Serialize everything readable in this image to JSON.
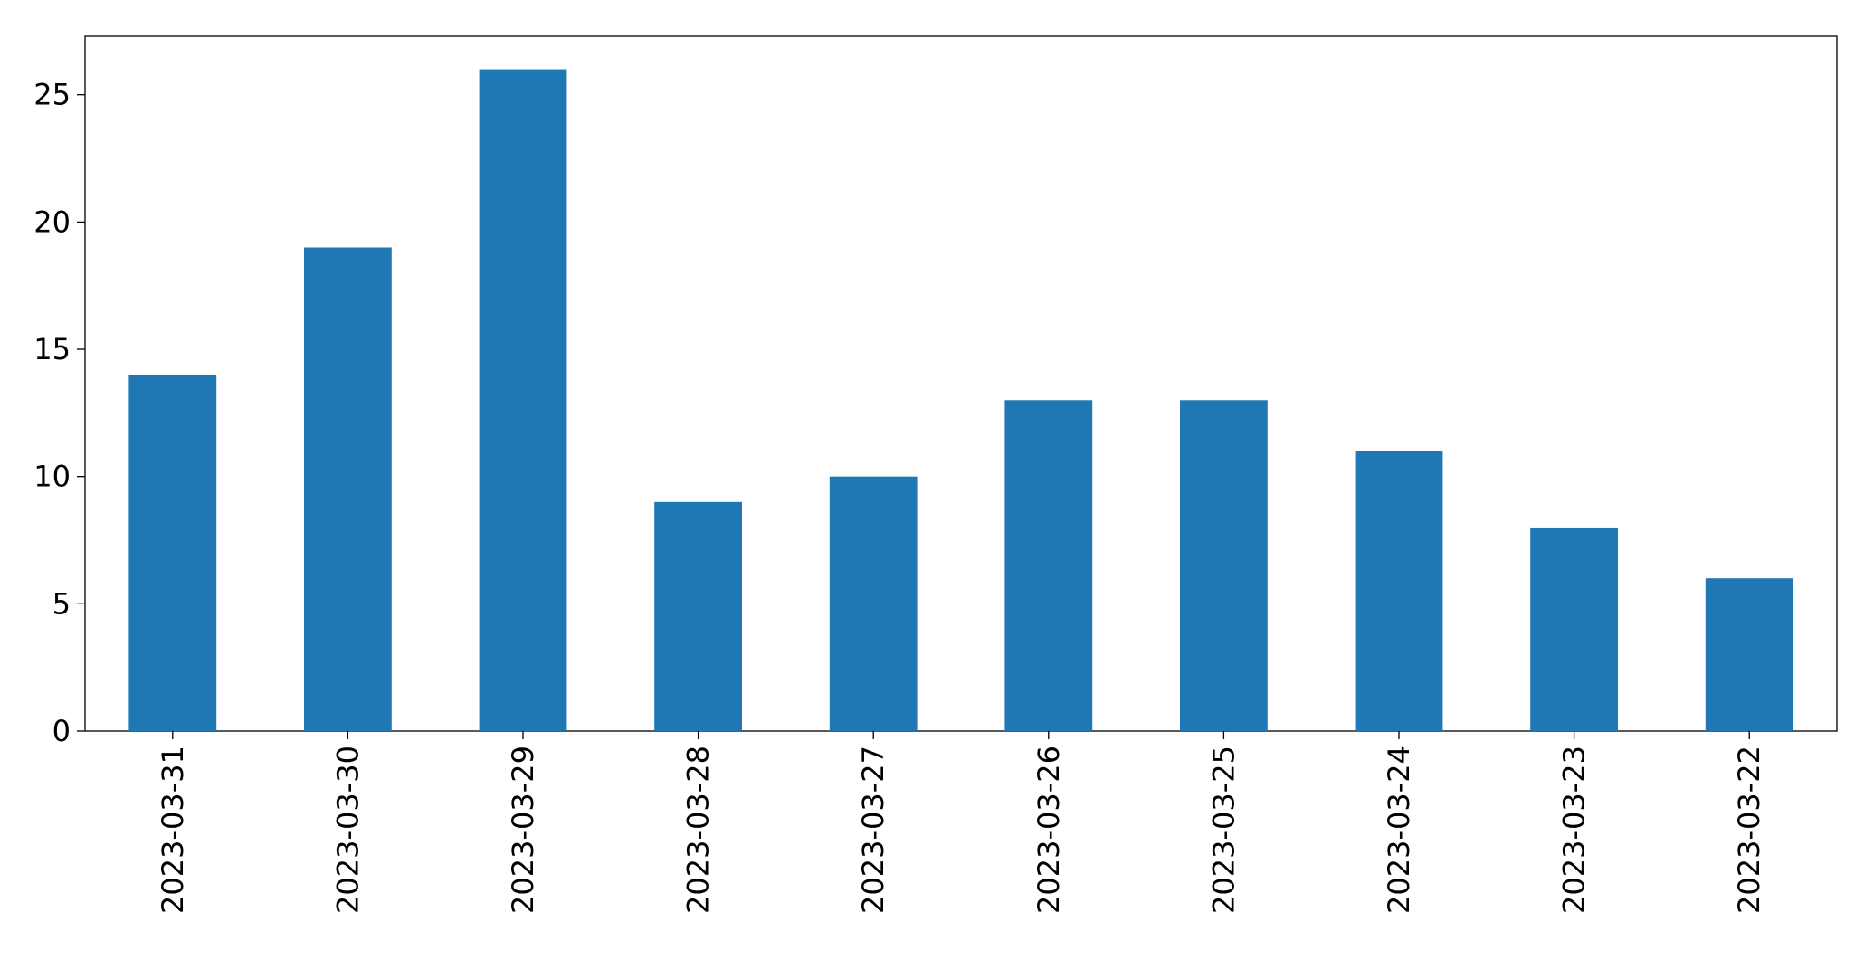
{
  "chart_data": {
    "type": "bar",
    "categories": [
      "2023-03-31",
      "2023-03-30",
      "2023-03-29",
      "2023-03-28",
      "2023-03-27",
      "2023-03-26",
      "2023-03-25",
      "2023-03-24",
      "2023-03-23",
      "2023-03-22"
    ],
    "values": [
      14,
      19,
      26,
      9,
      10,
      13,
      13,
      11,
      8,
      6
    ],
    "color": "#1f77b4",
    "ylim": [
      0,
      27.3
    ],
    "yticks": [
      0,
      5,
      10,
      15,
      20,
      25
    ],
    "grid": false
  }
}
